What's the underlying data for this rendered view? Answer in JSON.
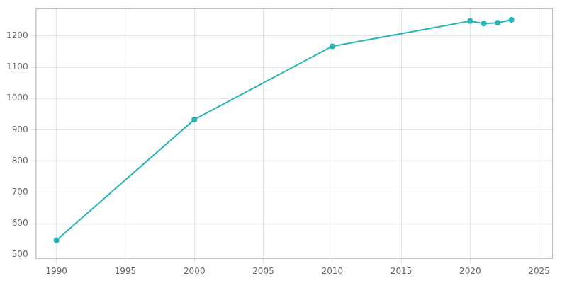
{
  "chart_data": {
    "type": "line",
    "x": [
      1990,
      2000,
      2010,
      2020,
      2021,
      2022,
      2023
    ],
    "values": [
      547,
      933,
      1167,
      1248,
      1240,
      1242,
      1252
    ],
    "color": "#2ab5b5",
    "marker": "circle",
    "xlim": [
      1988.5,
      2026
    ],
    "ylim": [
      488,
      1288
    ],
    "xticks": [
      1990,
      1995,
      2000,
      2005,
      2010,
      2015,
      2020,
      2025
    ],
    "yticks": [
      500,
      600,
      700,
      800,
      900,
      1000,
      1100,
      1200
    ],
    "grid": true
  }
}
